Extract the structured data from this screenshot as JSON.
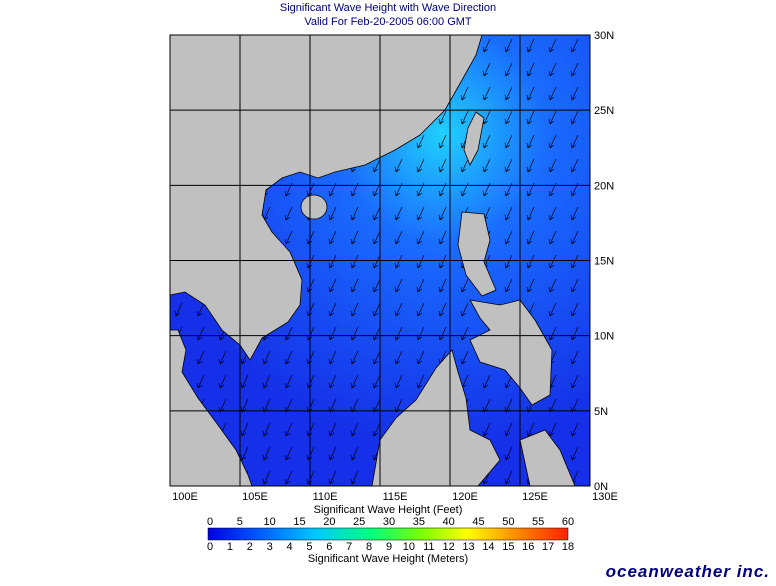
{
  "header": {
    "title": "Significant Wave Height with Wave Direction",
    "subtitle": "Valid For Feb-20-2005 06:00 GMT"
  },
  "map": {
    "lon_labels": [
      "100E",
      "105E",
      "110E",
      "115E",
      "120E",
      "125E",
      "130E"
    ],
    "lat_labels": [
      "0N",
      "5N",
      "10N",
      "15N",
      "20N",
      "25N",
      "30N"
    ]
  },
  "colorbar": {
    "feet_label": "Significant Wave Height (Feet)",
    "feet_ticks": [
      0,
      5,
      10,
      15,
      20,
      25,
      30,
      35,
      40,
      45,
      50,
      55,
      60
    ],
    "meters_ticks": [
      0,
      1,
      2,
      3,
      4,
      5,
      6,
      7,
      8,
      9,
      10,
      11,
      12,
      13,
      14,
      15,
      16,
      17,
      18
    ],
    "meters_label": "Significant Wave Height (Meters)"
  },
  "logo": "oceanweather inc."
}
